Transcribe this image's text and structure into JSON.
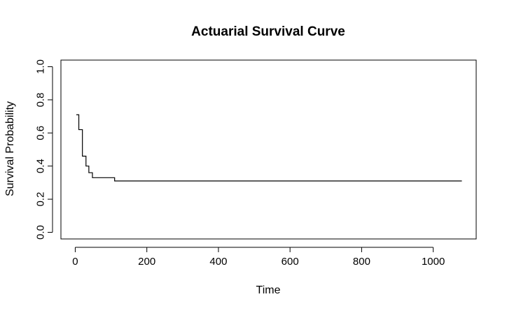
{
  "chart_data": {
    "type": "line",
    "step": true,
    "title": "Actuarial Survival Curve",
    "xlabel": "Time",
    "ylabel": "Survival Probability",
    "xlim": [
      -40,
      1120
    ],
    "ylim": [
      -0.04,
      1.04
    ],
    "xticks": [
      0,
      200,
      400,
      600,
      800,
      1000
    ],
    "yticks": [
      0.0,
      0.2,
      0.4,
      0.6,
      0.8,
      1.0
    ],
    "xtick_labels": [
      "0",
      "200",
      "400",
      "600",
      "800",
      "1000"
    ],
    "ytick_labels": [
      "0.0",
      "0.2",
      "0.4",
      "0.6",
      "0.8",
      "1.0"
    ],
    "grid": false,
    "series": [
      {
        "x": [
          3,
          10,
          20,
          30,
          38,
          48,
          110,
          1080
        ],
        "y": [
          0.71,
          0.62,
          0.46,
          0.4,
          0.36,
          0.33,
          0.31,
          0.31
        ]
      }
    ]
  }
}
